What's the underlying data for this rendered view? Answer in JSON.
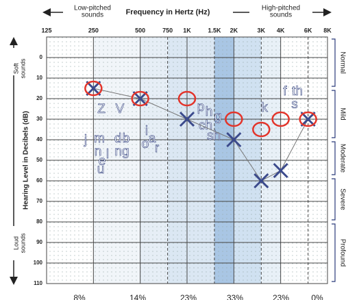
{
  "chart_data": {
    "type": "audiogram",
    "title": "Frequency in Hertz (Hz)",
    "low_label": [
      "Low-pitched",
      "sounds"
    ],
    "high_label": [
      "High-pitched",
      "sounds"
    ],
    "y_label": "Hearing Level in Decibels (dB)",
    "soft_label": [
      "Soft",
      "sounds"
    ],
    "loud_label": [
      "Loud",
      "sounds"
    ],
    "log_x": true,
    "y_inverted": true,
    "xlim": [
      125,
      8000
    ],
    "xticks": [
      125,
      250,
      500,
      750,
      {
        "value": 1000,
        "label": "1K"
      },
      {
        "value": 1500,
        "label": "1.5K"
      },
      {
        "value": 2000,
        "label": "2K"
      },
      {
        "value": 3000,
        "label": "3K"
      },
      {
        "value": 4000,
        "label": "4K"
      },
      {
        "value": 6000,
        "label": "6K"
      },
      {
        "value": 8000,
        "label": "8K"
      }
    ],
    "ylim": [
      -10,
      110
    ],
    "yticks": [
      0,
      10,
      20,
      30,
      40,
      50,
      60,
      70,
      80,
      90,
      100,
      110
    ],
    "grid": true,
    "x": [
      250,
      500,
      1000,
      2000,
      3000,
      4000,
      6000
    ],
    "series": [
      {
        "color": "#3b4a8c",
        "marker": "x",
        "values": [
          15,
          20,
          30,
          40,
          60,
          55,
          30
        ]
      },
      {
        "color": "#e3342a",
        "marker": "o",
        "values": [
          15,
          20,
          20,
          30,
          35,
          30,
          30
        ]
      }
    ],
    "degree_bands": [
      {
        "label": "Normal",
        "range": [
          -10,
          15
        ]
      },
      {
        "label": "Mild",
        "range": [
          15,
          40
        ]
      },
      {
        "label": "Moderate",
        "range": [
          40,
          58
        ]
      },
      {
        "label": "Severe",
        "range": [
          58,
          80
        ]
      },
      {
        "label": "Profound",
        "range": [
          80,
          110
        ]
      }
    ],
    "speech_sounds": [
      "j",
      "m",
      "n",
      "e",
      "l",
      "u",
      "d",
      "b",
      "ng",
      "Z",
      "V",
      "i",
      "o",
      "a",
      "r",
      "p",
      "h",
      "g",
      "ch",
      "sh",
      "k",
      "f",
      "th",
      "s"
    ],
    "band_shares": {
      "values": [
        8,
        14,
        23,
        33,
        23,
        0
      ],
      "value_labels": [
        "8%",
        "14%",
        "23%",
        "33%",
        "23%",
        "0%"
      ]
    }
  }
}
